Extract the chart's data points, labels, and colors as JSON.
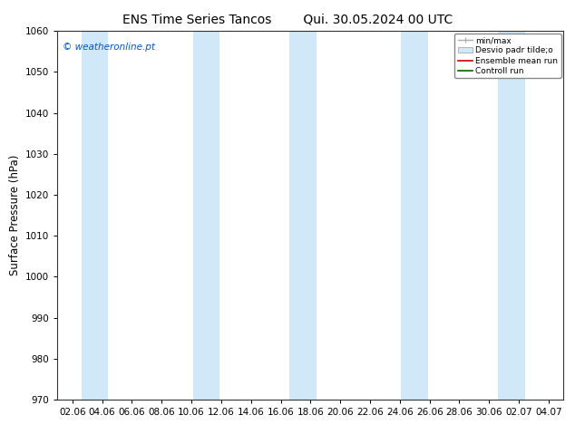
{
  "title_left": "ENS Time Series Tancos",
  "title_right": "Qui. 30.05.2024 00 UTC",
  "ylabel": "Surface Pressure (hPa)",
  "ylim": [
    970,
    1060
  ],
  "yticks": [
    970,
    980,
    990,
    1000,
    1010,
    1020,
    1030,
    1040,
    1050,
    1060
  ],
  "xtick_labels": [
    "02.06",
    "04.06",
    "06.06",
    "08.06",
    "10.06",
    "12.06",
    "14.06",
    "16.06",
    "18.06",
    "20.06",
    "22.06",
    "24.06",
    "26.06",
    "28.06",
    "30.06",
    "02.07",
    "04.07"
  ],
  "watermark": "© weatheronline.pt",
  "watermark_color": "#0055cc",
  "bg_color": "#ffffff",
  "plot_bg_color": "#ffffff",
  "band_color": "#d0e8f8",
  "legend_labels": [
    "min/max",
    "Desvio padr tilde;o",
    "Ensemble mean run",
    "Controll run"
  ],
  "title_fontsize": 10,
  "tick_fontsize": 7.5,
  "ylabel_fontsize": 8.5,
  "watermark_fontsize": 7.5
}
